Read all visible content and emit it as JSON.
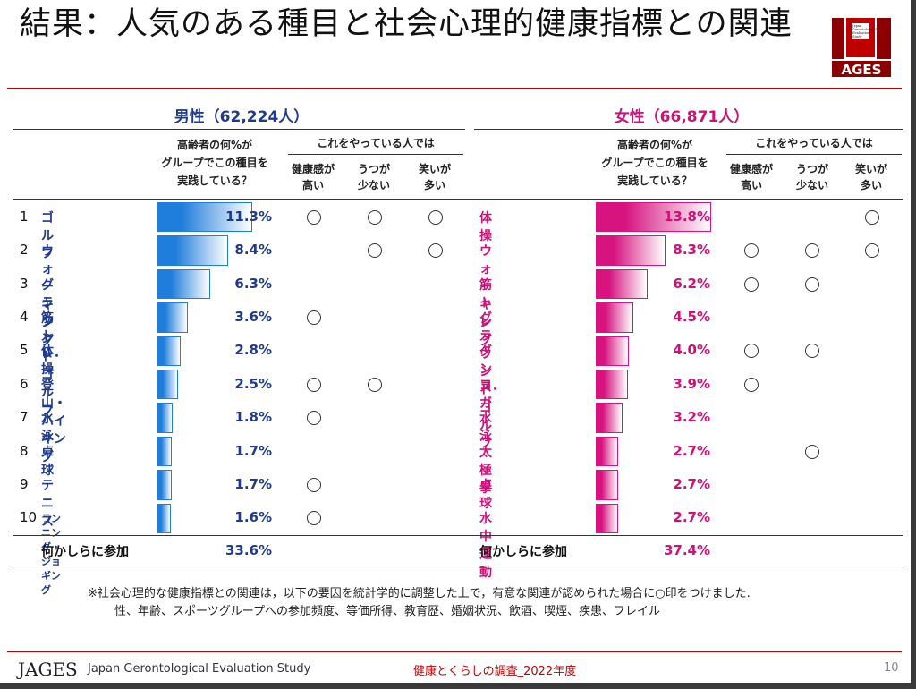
{
  "title": "結果：人気のある種目と社会心理的健康指標との関連",
  "logo": {
    "small_text": [
      "Japan",
      "Gerontological",
      "Evaluation",
      "Study"
    ],
    "wordmark": "AGES"
  },
  "men": {
    "header": "男性（62,224人）",
    "col_share": [
      "高齢者の何%が",
      "グループでこの種目を",
      "実践している？"
    ],
    "col_group": "これをやっている人では",
    "col_health": [
      "健康感が",
      "高い"
    ],
    "col_depress": [
      "うつが",
      "少ない"
    ],
    "col_laugh": [
      "笑いが",
      "多い"
    ],
    "total_label": "何かしらに参加",
    "total_value": "33.6%"
  },
  "women": {
    "header": "女性（66,871人）",
    "col_share": [
      "高齢者の何%が",
      "グループでこの種目を",
      "実践している？"
    ],
    "col_group": "これをやっている人では",
    "col_health": [
      "健康感が",
      "高い"
    ],
    "col_depress": [
      "うつが",
      "少ない"
    ],
    "col_laugh": [
      "笑いが",
      "多い"
    ],
    "total_label": "何かしらに参加",
    "total_value": "37.4%"
  },
  "ranks": [
    "1",
    "2",
    "3",
    "4",
    "5",
    "6",
    "7",
    "8",
    "9",
    "10"
  ],
  "chart_data": [
    {
      "type": "bar",
      "title": "男性（62,224人）",
      "categories": [
        "ゴルフ",
        "ウォーキング",
        "グラウンド･ゴルフ",
        "筋トレ",
        "体操",
        "登山・ハイキング",
        "水泳",
        "卓球",
        "テニス",
        "ランニング・ジョギング"
      ],
      "values": [
        11.3,
        8.4,
        6.3,
        3.6,
        2.8,
        2.5,
        1.8,
        1.7,
        1.7,
        1.6
      ],
      "value_labels": [
        "11.3%",
        "8.4%",
        "6.3%",
        "3.6%",
        "2.8%",
        "2.5%",
        "1.8%",
        "1.7%",
        "1.7%",
        "1.6%"
      ],
      "markers": {
        "健康感が高い": [
          true,
          false,
          false,
          true,
          false,
          true,
          true,
          false,
          true,
          true
        ],
        "うつが少ない": [
          true,
          true,
          false,
          false,
          false,
          true,
          false,
          false,
          false,
          false
        ],
        "笑いが多い": [
          true,
          true,
          false,
          false,
          false,
          false,
          false,
          false,
          false,
          false
        ]
      },
      "color": "#1f7ddb"
    },
    {
      "type": "bar",
      "title": "女性（66,871人）",
      "categories": [
        "体操",
        "ウォーキング",
        "筋トレ",
        "グラウンド･ゴルフ",
        "ダンス",
        "ヨガ",
        "水泳",
        "太極拳",
        "卓球",
        "水中運動"
      ],
      "values": [
        13.8,
        8.3,
        6.2,
        4.5,
        4.0,
        3.9,
        3.2,
        2.7,
        2.7,
        2.7
      ],
      "value_labels": [
        "13.8%",
        "8.3%",
        "6.2%",
        "4.5%",
        "4.0%",
        "3.9%",
        "3.2%",
        "2.7%",
        "2.7%",
        "2.7%"
      ],
      "markers": {
        "健康感が高い": [
          false,
          true,
          true,
          false,
          true,
          true,
          false,
          false,
          false,
          false
        ],
        "うつが少ない": [
          false,
          true,
          true,
          false,
          true,
          false,
          false,
          true,
          false,
          false
        ],
        "笑いが多い": [
          true,
          true,
          false,
          false,
          false,
          false,
          false,
          false,
          false,
          false
        ]
      },
      "color": "#d6137f"
    }
  ],
  "note_lines": [
    "※社会心理的な健康指標との関連は，以下の要因を統計学的に調整した上で，有意な関連が認められた場合に○印をつけました.",
    "性、年齢、スポーツグループへの参加頻度、等価所得、教育歴、婚姻状況、飲酒、喫煙、疾患、フレイル"
  ],
  "footer": {
    "brand": "JAGES",
    "brand_full": "Japan Gerontological Evaluation Study",
    "survey": "健康とくらしの調査_2022年度",
    "page": "10"
  },
  "colors": {
    "men_text": "#1f3a8a",
    "women_text": "#cc1177",
    "accent_red": "#c00000"
  }
}
